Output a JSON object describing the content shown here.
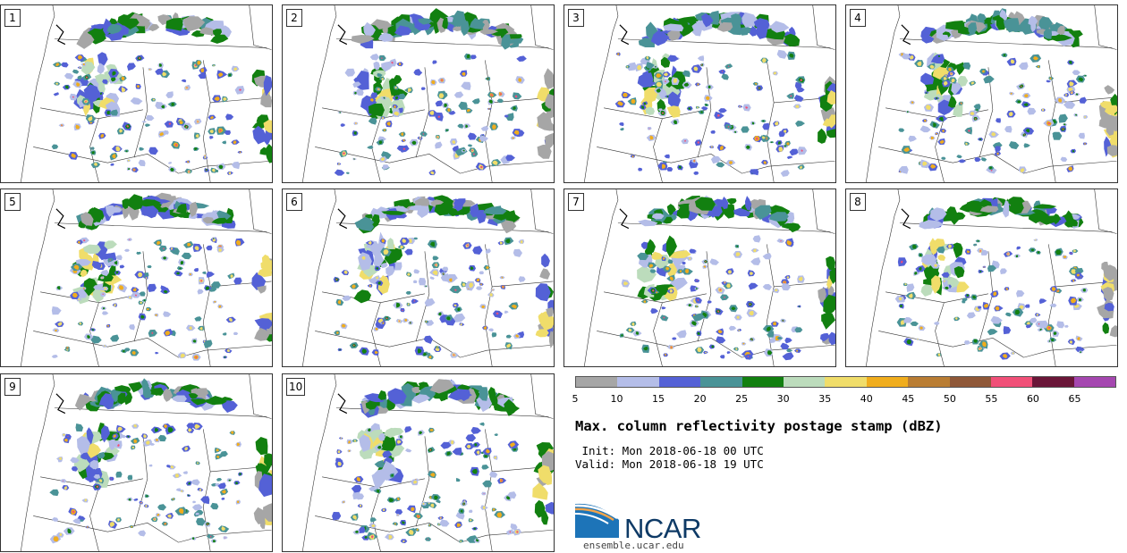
{
  "panels": [
    {
      "label": "1"
    },
    {
      "label": "2"
    },
    {
      "label": "3"
    },
    {
      "label": "4"
    },
    {
      "label": "5"
    },
    {
      "label": "6"
    },
    {
      "label": "7"
    },
    {
      "label": "8"
    },
    {
      "label": "9"
    },
    {
      "label": "10"
    }
  ],
  "legend": {
    "ticks": [
      "5",
      "10",
      "15",
      "20",
      "25",
      "30",
      "35",
      "40",
      "45",
      "50",
      "55",
      "60",
      "65"
    ],
    "colors": [
      "#a6a6a6",
      "#b4bde8",
      "#5461d6",
      "#4a9397",
      "#128010",
      "#bcdcbc",
      "#f0dd6a",
      "#f0ad1d",
      "#b97d33",
      "#8f5838",
      "#f15078",
      "#6a1638",
      "#a547b0"
    ]
  },
  "title": "Max. column reflectivity postage stamp (dBZ)",
  "init": " Init: Mon 2018-06-18 00 UTC",
  "valid": "Valid: Mon 2018-06-18 19 UTC",
  "logo": {
    "name": "NCAR",
    "url": "ensemble.ucar.edu"
  },
  "palette": {
    "gray": "#a6a6a6",
    "lavender": "#b4bde8",
    "blue": "#5461d6",
    "teal": "#4a9397",
    "green": "#128010",
    "paleGreen": "#bcdcbc",
    "yellow": "#f0dd6a",
    "orange": "#f0ad1d",
    "brown": "#b97d33",
    "red": "#f15078"
  }
}
